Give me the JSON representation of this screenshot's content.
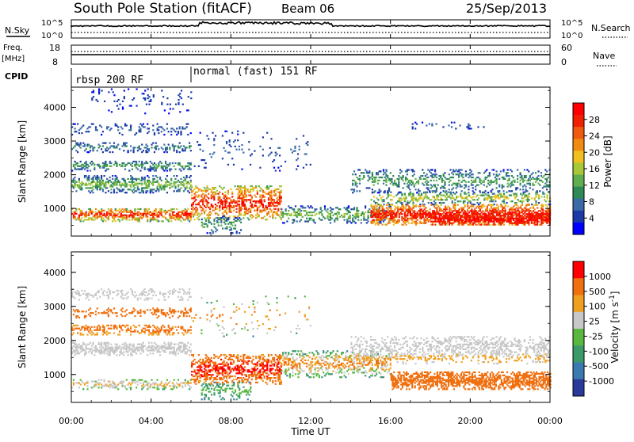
{
  "header": {
    "title": "South Pole Station (fitACF)",
    "beam": "Beam 06",
    "date": "25/Sep/2013"
  },
  "strips": {
    "nsky_label": "N.Sky",
    "nsearch_label": "N.Search",
    "freq_label_1": "Freq.",
    "freq_label_2": "[MHz]",
    "nave_label": "Nave",
    "cpid_label": "CPID",
    "noise_left_ticks": [
      "10^5",
      "10^0"
    ],
    "noise_right_ticks": [
      "10^5",
      "10^0"
    ],
    "freq_left_ticks": [
      "18",
      "8"
    ],
    "freq_right_ticks": [
      "60",
      "0"
    ],
    "cpid_segments": [
      "rbsp 200 RF",
      "normal (fast) 151 RF"
    ]
  },
  "chart_data": [
    {
      "type": "heatmap",
      "name": "power",
      "ylabel": "Slant Range [km]",
      "yticks": [
        "4000",
        "3000",
        "2000",
        "1000"
      ],
      "ylim": [
        180,
        4600
      ],
      "xlim": [
        0,
        24
      ],
      "xlabel": "Time UT",
      "xticks": [
        "00:00",
        "04:00",
        "08:00",
        "12:00",
        "16:00",
        "20:00",
        "00:00"
      ],
      "colorbar": {
        "label": "Power [dB]",
        "ticks": [
          "28",
          "24",
          "20",
          "16",
          "12",
          "8",
          "4"
        ],
        "colors": [
          "#0000ff",
          "#1a3aa8",
          "#3a6aa8",
          "#2e8a55",
          "#5fae50",
          "#a8c83a",
          "#f0c020",
          "#f08a10",
          "#f05a10",
          "#f02000",
          "#ff0000"
        ]
      }
    },
    {
      "type": "heatmap",
      "name": "velocity",
      "ylabel": "Slant Range [km]",
      "yticks": [
        "4000",
        "3000",
        "2000",
        "1000"
      ],
      "ylim": [
        180,
        4600
      ],
      "xlim": [
        0,
        24
      ],
      "xlabel": "Time UT",
      "xticks": [
        "00:00",
        "04:00",
        "08:00",
        "12:00",
        "16:00",
        "20:00",
        "00:00"
      ],
      "colorbar": {
        "label": "Velocity [m s^-1]",
        "ticks": [
          "1000",
          "500",
          "100",
          "25",
          "-25",
          "-100",
          "-500",
          "-1000"
        ],
        "colors": [
          "#2a3a9a",
          "#3a7ab0",
          "#3a9a6a",
          "#5ab840",
          "#c8c8c8",
          "#f0a020",
          "#f07010",
          "#ff0000"
        ]
      }
    }
  ]
}
